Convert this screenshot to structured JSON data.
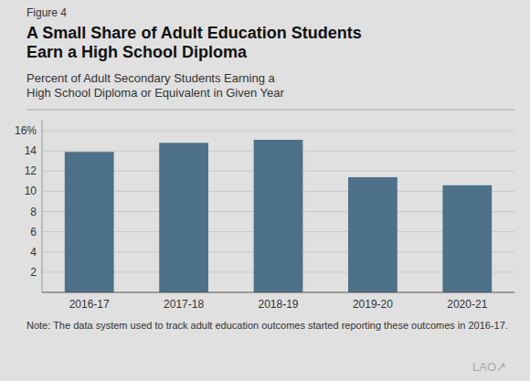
{
  "chart_data": {
    "type": "bar",
    "title": "A Small Share of Adult Education Students\nEarn a High School Diploma",
    "subtitle": "Percent of Adult Secondary Students Earning a\nHigh School Diploma or Equivalent in Given Year",
    "annotations": [
      "Figure 4",
      "Note: The data system used to track adult education outcomes started reporting these outcomes in 2016-17.",
      "LAO↗"
    ],
    "categories": [
      "2016-17",
      "2017-18",
      "2018-19",
      "2019-20",
      "2020-21"
    ],
    "values": [
      13.9,
      14.8,
      15.1,
      11.4,
      10.6
    ],
    "color": "#4d7189",
    "ylim": [
      0,
      17.0
    ],
    "yticks": [
      2,
      4,
      6,
      8,
      10,
      12,
      14,
      {
        "value": 16,
        "label": "16%"
      }
    ],
    "grid": true
  }
}
